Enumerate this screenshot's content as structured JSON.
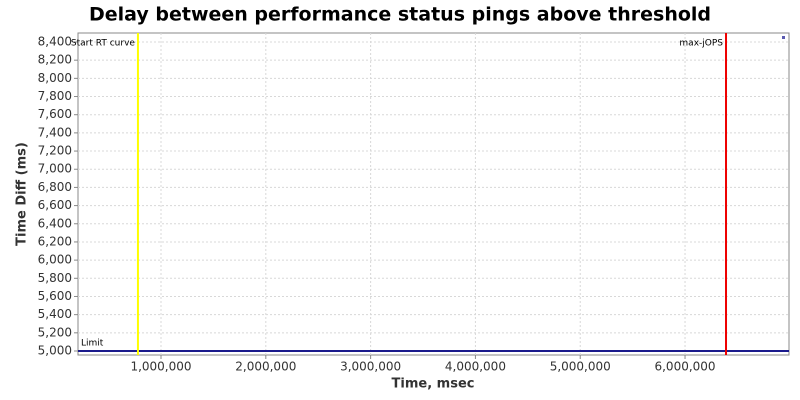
{
  "chart_data": {
    "type": "line",
    "title": "Delay between performance status pings above threshold",
    "x_label": "Time, msec",
    "y_label": "Time Diff (ms)",
    "xlim": [
      208000,
      6992000
    ],
    "ylim": [
      4956,
      8499
    ],
    "xticks": [
      {
        "value": 1000000,
        "label": "1,000,000"
      },
      {
        "value": 2000000,
        "label": "2,000,000"
      },
      {
        "value": 3000000,
        "label": "3,000,000"
      },
      {
        "value": 4000000,
        "label": "4,000,000"
      },
      {
        "value": 5000000,
        "label": "5,000,000"
      },
      {
        "value": 6000000,
        "label": "6,000,000"
      }
    ],
    "yticks": [
      {
        "value": 5000,
        "label": "5,000"
      },
      {
        "value": 5200,
        "label": "5,200"
      },
      {
        "value": 5400,
        "label": "5,400"
      },
      {
        "value": 5600,
        "label": "5,600"
      },
      {
        "value": 5800,
        "label": "5,800"
      },
      {
        "value": 6000,
        "label": "6,000"
      },
      {
        "value": 6200,
        "label": "6,200"
      },
      {
        "value": 6400,
        "label": "6,400"
      },
      {
        "value": 6600,
        "label": "6,600"
      },
      {
        "value": 6800,
        "label": "6,800"
      },
      {
        "value": 7000,
        "label": "7,000"
      },
      {
        "value": 7200,
        "label": "7,200"
      },
      {
        "value": 7400,
        "label": "7,400"
      },
      {
        "value": 7600,
        "label": "7,600"
      },
      {
        "value": 7800,
        "label": "7,800"
      },
      {
        "value": 8000,
        "label": "8,000"
      },
      {
        "value": 8200,
        "label": "8,200"
      },
      {
        "value": 8400,
        "label": "8,400"
      }
    ],
    "grid": true,
    "vlines": [
      {
        "label": "Start RT curve",
        "x": 780000,
        "color": "#ffff00"
      },
      {
        "label": "max-jOPS",
        "x": 6391000,
        "color": "#ee0000"
      }
    ],
    "hlines": [
      {
        "label": "Limit",
        "value": 5000,
        "color": "#1a1a8c"
      }
    ]
  }
}
